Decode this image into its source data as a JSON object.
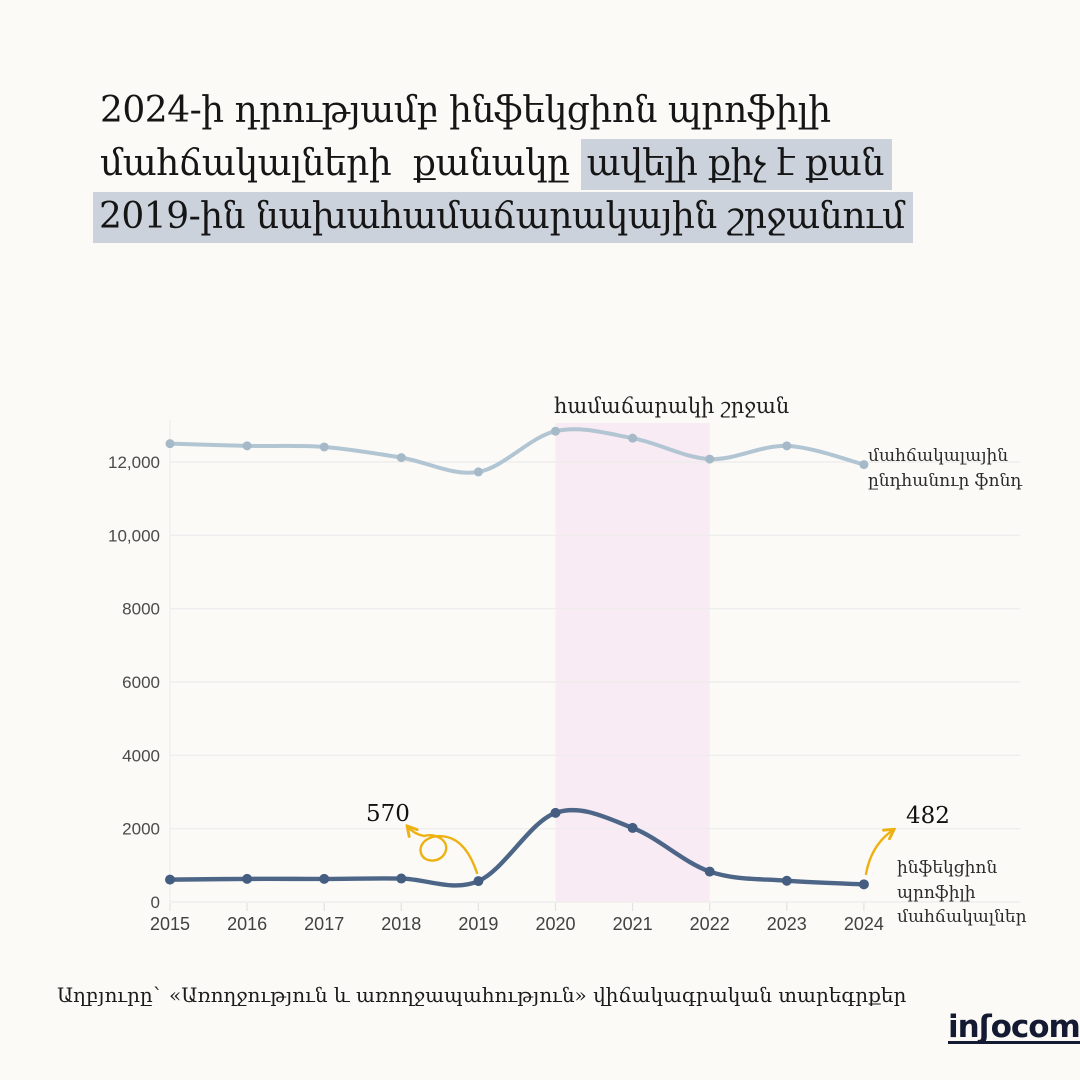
{
  "title": {
    "line1": "2024-ի դրությամբ ինֆեկցիոն պրոֆիլի",
    "line2_plain": "մահճակալների  քանակը ",
    "line2_highlight": "ավելի քիչ է քան",
    "line3_highlight": "2019-ին նախահամաճարակային շրջանում",
    "highlight_color": "#ccd2dc"
  },
  "chart_data": {
    "type": "line",
    "x": [
      2015,
      2016,
      2017,
      2018,
      2019,
      2020,
      2021,
      2022,
      2023,
      2024
    ],
    "x_tick_labels": [
      "2015",
      "2016",
      "2017",
      "2018",
      "2019",
      "2020",
      "2021",
      "2022",
      "2023",
      "2024"
    ],
    "series": [
      {
        "name": "մահճակալային ընդհանուր ֆոնդ",
        "color": "#b2c5d3",
        "point_color": "#a5b9c8",
        "values": [
          12500,
          12440,
          12410,
          12120,
          11730,
          12840,
          12650,
          12080,
          12440,
          11930
        ]
      },
      {
        "name": "ինֆեկցիոն պրոֆիլի մահճակալներ",
        "color": "#4d6687",
        "point_color": "#455d80",
        "values": [
          610,
          630,
          630,
          640,
          570,
          2430,
          2020,
          830,
          580,
          482
        ]
      }
    ],
    "y_axis": {
      "min": 0,
      "max": 13200,
      "tick_values": [
        0,
        2000,
        4000,
        6000,
        8000,
        10000,
        12000
      ],
      "tick_labels": [
        "0",
        "2000",
        "4000",
        "6000",
        "8000",
        "10,000",
        "12,000"
      ]
    },
    "band": {
      "x_from": 2020,
      "x_to": 2022,
      "label": "համաճարակի շրջան",
      "fill": "#f3d7ee"
    },
    "annotations": [
      {
        "text": "570",
        "x": 2019,
        "series": 1
      },
      {
        "text": "482",
        "x": 2024,
        "series": 1
      }
    ],
    "grid": true,
    "legend_position": "inline-right",
    "accent_arrow_color": "#edb112"
  },
  "side_labels": {
    "series1": [
      "մահճակալային",
      "ընդհանուր  ֆոնդ"
    ],
    "series2": [
      "ինֆեկցիոն պրոֆիլի",
      "մահճակալներ"
    ]
  },
  "footer": {
    "source": "Աղբյուրը` «Առողջություն և առողջապահություն» վիճակագրական տարեգրքեր",
    "logo": {
      "part1": "in",
      "part2": "ʃ",
      "part3": "ocom"
    }
  }
}
